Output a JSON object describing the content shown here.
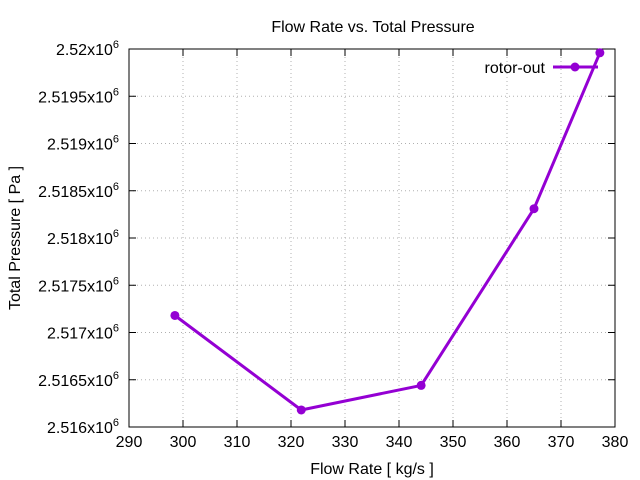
{
  "chart_data": {
    "type": "line",
    "title": "Flow Rate vs. Total Pressure",
    "xlabel": "Flow Rate [ kg/s ]",
    "ylabel": "Total Pressure [ Pa ]",
    "xlim": [
      290,
      380
    ],
    "ylim": [
      2516000,
      2520000
    ],
    "x_ticks": [
      290,
      300,
      310,
      320,
      330,
      340,
      350,
      360,
      370,
      380
    ],
    "y_ticks": [
      {
        "value": 2516000,
        "mantissa": "2.516",
        "exp": "6"
      },
      {
        "value": 2516500,
        "mantissa": "2.5165",
        "exp": "6"
      },
      {
        "value": 2517000,
        "mantissa": "2.517",
        "exp": "6"
      },
      {
        "value": 2517500,
        "mantissa": "2.5175",
        "exp": "6"
      },
      {
        "value": 2518000,
        "mantissa": "2.518",
        "exp": "6"
      },
      {
        "value": 2518500,
        "mantissa": "2.5185",
        "exp": "6"
      },
      {
        "value": 2519000,
        "mantissa": "2.519",
        "exp": "6"
      },
      {
        "value": 2519500,
        "mantissa": "2.5195",
        "exp": "6"
      },
      {
        "value": 2520000,
        "mantissa": "2.52",
        "exp": "6"
      }
    ],
    "grid": true,
    "legend_position": "top-right",
    "series": [
      {
        "name": "rotor-out",
        "color": "#9400d3",
        "x": [
          298.5,
          321.9,
          344.1,
          365.0,
          377.2
        ],
        "y": [
          2517180,
          2516180,
          2516440,
          2518310,
          2519960
        ]
      }
    ]
  }
}
